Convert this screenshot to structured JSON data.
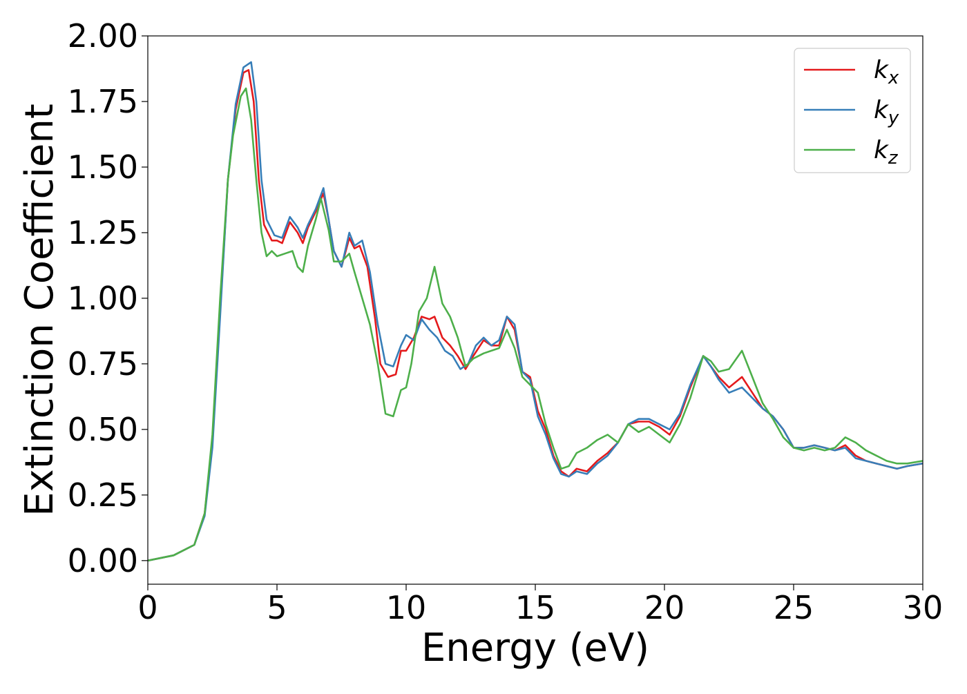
{
  "chart_data": {
    "type": "line",
    "xlabel": "Energy (eV)",
    "ylabel": "Extinction Coefficient",
    "xlim": [
      0,
      30
    ],
    "ylim": [
      -0.09,
      2.0
    ],
    "xticks": [
      0,
      5,
      10,
      15,
      20,
      25,
      30
    ],
    "xtick_labels": [
      "0",
      "5",
      "10",
      "15",
      "20",
      "25",
      "30"
    ],
    "yticks": [
      0.0,
      0.25,
      0.5,
      0.75,
      1.0,
      1.25,
      1.5,
      1.75,
      2.0
    ],
    "ytick_labels": [
      "0.00",
      "0.25",
      "0.50",
      "0.75",
      "1.00",
      "1.25",
      "1.50",
      "1.75",
      "2.00"
    ],
    "grid": false,
    "legend_position": "top-right",
    "series": [
      {
        "name": "k",
        "subscript": "x",
        "color": "#e41a1c",
        "x": [
          0,
          1,
          1.8,
          2.2,
          2.5,
          2.8,
          3.1,
          3.4,
          3.7,
          3.9,
          4.1,
          4.3,
          4.5,
          4.8,
          5.0,
          5.2,
          5.5,
          5.8,
          6.0,
          6.2,
          6.5,
          6.8,
          7.0,
          7.2,
          7.5,
          7.8,
          8.0,
          8.2,
          8.5,
          8.8,
          9.0,
          9.3,
          9.6,
          9.8,
          10.0,
          10.3,
          10.6,
          10.9,
          11.1,
          11.4,
          11.7,
          12.0,
          12.3,
          12.6,
          13.0,
          13.3,
          13.6,
          13.9,
          14.2,
          14.5,
          14.8,
          15.1,
          15.4,
          15.7,
          16.0,
          16.3,
          16.6,
          17.0,
          17.4,
          17.8,
          18.2,
          18.6,
          19.0,
          19.4,
          19.8,
          20.2,
          20.6,
          21.0,
          21.5,
          21.8,
          22.1,
          22.5,
          23.0,
          23.4,
          23.8,
          24.2,
          24.6,
          25.0,
          25.4,
          25.8,
          26.2,
          26.6,
          27.0,
          27.4,
          27.8,
          28.2,
          28.6,
          29.0,
          29.4,
          30.0
        ],
        "values": [
          0.0,
          0.02,
          0.06,
          0.18,
          0.45,
          0.95,
          1.45,
          1.72,
          1.86,
          1.87,
          1.75,
          1.45,
          1.28,
          1.22,
          1.22,
          1.21,
          1.29,
          1.25,
          1.21,
          1.27,
          1.33,
          1.4,
          1.3,
          1.18,
          1.12,
          1.23,
          1.19,
          1.2,
          1.12,
          0.92,
          0.75,
          0.7,
          0.71,
          0.8,
          0.8,
          0.85,
          0.93,
          0.92,
          0.93,
          0.85,
          0.82,
          0.78,
          0.73,
          0.78,
          0.84,
          0.82,
          0.82,
          0.93,
          0.88,
          0.72,
          0.7,
          0.57,
          0.5,
          0.4,
          0.34,
          0.32,
          0.35,
          0.34,
          0.38,
          0.41,
          0.45,
          0.52,
          0.53,
          0.53,
          0.51,
          0.48,
          0.55,
          0.66,
          0.78,
          0.74,
          0.7,
          0.66,
          0.7,
          0.64,
          0.58,
          0.55,
          0.5,
          0.43,
          0.43,
          0.44,
          0.43,
          0.42,
          0.44,
          0.4,
          0.38,
          0.37,
          0.36,
          0.35,
          0.36,
          0.37
        ]
      },
      {
        "name": "k",
        "subscript": "y",
        "color": "#377eb8",
        "x": [
          0,
          1,
          1.8,
          2.2,
          2.5,
          2.8,
          3.1,
          3.4,
          3.7,
          4.0,
          4.2,
          4.4,
          4.6,
          4.9,
          5.2,
          5.5,
          5.8,
          6.0,
          6.2,
          6.5,
          6.8,
          7.0,
          7.2,
          7.5,
          7.8,
          8.0,
          8.3,
          8.6,
          8.9,
          9.2,
          9.5,
          9.8,
          10.0,
          10.3,
          10.6,
          10.9,
          11.2,
          11.5,
          11.8,
          12.1,
          12.4,
          12.7,
          13.0,
          13.3,
          13.6,
          13.9,
          14.2,
          14.5,
          14.8,
          15.1,
          15.4,
          15.7,
          16.0,
          16.3,
          16.6,
          17.0,
          17.4,
          17.8,
          18.2,
          18.6,
          19.0,
          19.4,
          19.8,
          20.2,
          20.6,
          21.0,
          21.5,
          21.8,
          22.1,
          22.5,
          23.0,
          23.4,
          23.8,
          24.2,
          24.6,
          25.0,
          25.4,
          25.8,
          26.2,
          26.6,
          27.0,
          27.4,
          27.8,
          28.2,
          28.6,
          29.0,
          29.4,
          30.0
        ],
        "values": [
          0.0,
          0.02,
          0.06,
          0.17,
          0.43,
          0.93,
          1.45,
          1.74,
          1.88,
          1.9,
          1.75,
          1.45,
          1.3,
          1.24,
          1.23,
          1.31,
          1.27,
          1.23,
          1.28,
          1.34,
          1.42,
          1.3,
          1.18,
          1.12,
          1.25,
          1.2,
          1.22,
          1.1,
          0.9,
          0.75,
          0.74,
          0.82,
          0.86,
          0.84,
          0.92,
          0.88,
          0.85,
          0.8,
          0.78,
          0.73,
          0.75,
          0.82,
          0.85,
          0.82,
          0.84,
          0.93,
          0.9,
          0.72,
          0.69,
          0.55,
          0.48,
          0.39,
          0.33,
          0.32,
          0.34,
          0.33,
          0.37,
          0.4,
          0.45,
          0.52,
          0.54,
          0.54,
          0.52,
          0.5,
          0.56,
          0.67,
          0.78,
          0.74,
          0.69,
          0.64,
          0.66,
          0.62,
          0.58,
          0.55,
          0.5,
          0.43,
          0.43,
          0.44,
          0.43,
          0.42,
          0.43,
          0.39,
          0.38,
          0.37,
          0.36,
          0.35,
          0.36,
          0.37
        ]
      },
      {
        "name": "k",
        "subscript": "z",
        "color": "#4daf4a",
        "x": [
          0,
          1,
          1.8,
          2.2,
          2.5,
          2.8,
          3.1,
          3.3,
          3.6,
          3.8,
          4.0,
          4.2,
          4.4,
          4.6,
          4.8,
          5.0,
          5.3,
          5.6,
          5.8,
          6.0,
          6.2,
          6.5,
          6.7,
          7.0,
          7.2,
          7.5,
          7.8,
          8.0,
          8.3,
          8.6,
          8.9,
          9.2,
          9.5,
          9.8,
          10.0,
          10.2,
          10.5,
          10.8,
          11.1,
          11.4,
          11.7,
          12.0,
          12.3,
          12.6,
          13.0,
          13.3,
          13.6,
          13.9,
          14.2,
          14.5,
          14.8,
          15.1,
          15.4,
          15.7,
          16.0,
          16.3,
          16.6,
          17.0,
          17.4,
          17.8,
          18.2,
          18.6,
          19.0,
          19.4,
          19.8,
          20.2,
          20.6,
          21.0,
          21.5,
          21.8,
          22.1,
          22.5,
          23.0,
          23.4,
          23.8,
          24.2,
          24.6,
          25.0,
          25.4,
          25.8,
          26.2,
          26.6,
          27.0,
          27.4,
          27.8,
          28.2,
          28.6,
          29.0,
          29.4,
          30.0
        ],
        "values": [
          0.0,
          0.02,
          0.06,
          0.18,
          0.48,
          1.0,
          1.45,
          1.62,
          1.77,
          1.8,
          1.68,
          1.45,
          1.25,
          1.16,
          1.18,
          1.16,
          1.17,
          1.18,
          1.12,
          1.1,
          1.2,
          1.3,
          1.38,
          1.26,
          1.14,
          1.14,
          1.17,
          1.1,
          1.0,
          0.9,
          0.75,
          0.56,
          0.55,
          0.65,
          0.66,
          0.75,
          0.95,
          1.0,
          1.12,
          0.98,
          0.93,
          0.85,
          0.74,
          0.77,
          0.79,
          0.8,
          0.81,
          0.88,
          0.81,
          0.7,
          0.67,
          0.64,
          0.52,
          0.43,
          0.35,
          0.36,
          0.41,
          0.43,
          0.46,
          0.48,
          0.45,
          0.52,
          0.49,
          0.51,
          0.48,
          0.45,
          0.52,
          0.62,
          0.78,
          0.76,
          0.72,
          0.73,
          0.8,
          0.7,
          0.6,
          0.54,
          0.47,
          0.43,
          0.42,
          0.43,
          0.42,
          0.43,
          0.47,
          0.45,
          0.42,
          0.4,
          0.38,
          0.37,
          0.37,
          0.38
        ]
      }
    ]
  }
}
